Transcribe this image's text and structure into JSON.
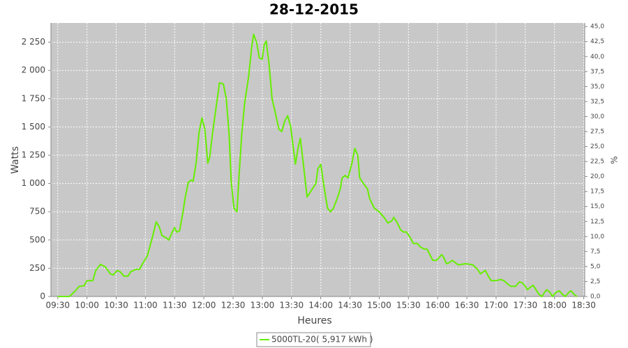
{
  "chart_data": {
    "type": "line",
    "title": "28-12-2015",
    "x_label": "Heures",
    "y_label": "Watts",
    "y2_label": "%",
    "xlim": [
      563,
      1111
    ],
    "ylim": [
      0,
      2420
    ],
    "y2lim": [
      0,
      45.6
    ],
    "xticks": [
      {
        "value": 570,
        "label": "09:30"
      },
      {
        "value": 600,
        "label": "10:00"
      },
      {
        "value": 630,
        "label": "10:30"
      },
      {
        "value": 660,
        "label": "11:00"
      },
      {
        "value": 690,
        "label": "11:30"
      },
      {
        "value": 720,
        "label": "12:00"
      },
      {
        "value": 750,
        "label": "12:30"
      },
      {
        "value": 780,
        "label": "13:00"
      },
      {
        "value": 810,
        "label": "13:30"
      },
      {
        "value": 840,
        "label": "14:00"
      },
      {
        "value": 870,
        "label": "14:30"
      },
      {
        "value": 900,
        "label": "15:00"
      },
      {
        "value": 930,
        "label": "15:30"
      },
      {
        "value": 960,
        "label": "16:00"
      },
      {
        "value": 990,
        "label": "16:30"
      },
      {
        "value": 1020,
        "label": "17:00"
      },
      {
        "value": 1050,
        "label": "17:30"
      },
      {
        "value": 1080,
        "label": "18:00"
      },
      {
        "value": 1110,
        "label": "18:30"
      }
    ],
    "yticks": [
      0,
      250,
      500,
      750,
      {
        "value": 1000,
        "label": "1 000"
      },
      {
        "value": 1250,
        "label": "1 250"
      },
      {
        "value": 1500,
        "label": "1 500"
      },
      {
        "value": 1750,
        "label": "1 750"
      },
      {
        "value": 2000,
        "label": "2 000"
      },
      {
        "value": 2250,
        "label": "2 250"
      }
    ],
    "y2ticks": [
      {
        "value": 0,
        "label": "0,0"
      },
      {
        "value": 2.5,
        "label": "2,5"
      },
      {
        "value": 5,
        "label": "5,0"
      },
      {
        "value": 7.5,
        "label": "7,5"
      },
      {
        "value": 10,
        "label": "10,0"
      },
      {
        "value": 12.5,
        "label": "12,5"
      },
      {
        "value": 15,
        "label": "15,0"
      },
      {
        "value": 17.5,
        "label": "17,5"
      },
      {
        "value": 20,
        "label": "20,0"
      },
      {
        "value": 22.5,
        "label": "22,5"
      },
      {
        "value": 25,
        "label": "25,0"
      },
      {
        "value": 27.5,
        "label": "27,5"
      },
      {
        "value": 30,
        "label": "30,0"
      },
      {
        "value": 32.5,
        "label": "32,5"
      },
      {
        "value": 35,
        "label": "35,0"
      },
      {
        "value": 37.5,
        "label": "37,5"
      },
      {
        "value": 40,
        "label": "40,0"
      },
      {
        "value": 42.5,
        "label": "42,5"
      },
      {
        "value": 45,
        "label": "45,0"
      }
    ],
    "grid": true,
    "x": [
      570,
      575,
      582,
      588,
      592,
      597,
      600,
      606,
      609,
      614,
      619,
      624,
      627,
      631,
      634,
      638,
      642,
      645,
      650,
      654,
      657,
      662,
      667,
      671,
      674,
      677,
      681,
      684,
      687,
      690,
      692,
      695,
      698,
      701,
      704,
      707,
      709,
      712,
      715,
      718,
      721,
      724,
      726,
      729,
      733,
      736,
      740,
      743,
      746,
      748,
      751,
      754,
      756,
      759,
      762,
      766,
      769,
      771,
      774,
      777,
      780,
      782,
      784,
      787,
      790,
      794,
      797,
      800,
      803,
      806,
      809,
      812,
      814,
      817,
      819,
      822,
      826,
      829,
      832,
      835,
      837,
      840,
      842,
      845,
      847,
      850,
      853,
      857,
      860,
      862,
      865,
      868,
      872,
      875,
      878,
      880,
      883,
      888,
      890,
      895,
      900,
      905,
      909,
      913,
      915,
      918,
      922,
      925,
      928,
      932,
      935,
      939,
      942,
      946,
      949,
      952,
      955,
      959,
      964,
      966,
      969,
      972,
      975,
      978,
      981,
      985,
      989,
      996,
      1001,
      1004,
      1007,
      1009,
      1012,
      1015,
      1019,
      1025,
      1028,
      1032,
      1035,
      1040,
      1044,
      1047,
      1050,
      1052,
      1055,
      1058,
      1061,
      1064,
      1067,
      1070,
      1072,
      1075,
      1078,
      1082,
      1085,
      1088,
      1091,
      1095,
      1097,
      1100,
      1103
    ],
    "series": [
      {
        "name": "5000TL-20( 5,917 kWh )",
        "color": "#66ee00",
        "values": [
          0,
          0,
          0,
          50,
          90,
          95,
          140,
          140,
          230,
          285,
          260,
          200,
          190,
          230,
          220,
          180,
          180,
          220,
          240,
          240,
          290,
          360,
          520,
          660,
          620,
          540,
          520,
          500,
          560,
          610,
          570,
          580,
          720,
          880,
          1010,
          1030,
          1020,
          1180,
          1450,
          1580,
          1480,
          1180,
          1230,
          1450,
          1700,
          1890,
          1880,
          1750,
          1420,
          1020,
          780,
          750,
          1050,
          1450,
          1720,
          1950,
          2200,
          2320,
          2250,
          2110,
          2100,
          2230,
          2260,
          2050,
          1750,
          1600,
          1480,
          1460,
          1550,
          1600,
          1510,
          1300,
          1170,
          1330,
          1400,
          1180,
          880,
          920,
          960,
          1000,
          1130,
          1170,
          1050,
          880,
          780,
          750,
          780,
          870,
          950,
          1050,
          1070,
          1050,
          1180,
          1310,
          1250,
          1050,
          1010,
          950,
          870,
          780,
          750,
          700,
          650,
          670,
          700,
          660,
          590,
          570,
          570,
          520,
          470,
          470,
          440,
          420,
          420,
          370,
          320,
          320,
          370,
          350,
          290,
          300,
          320,
          300,
          280,
          285,
          290,
          280,
          240,
          200,
          220,
          230,
          180,
          140,
          140,
          150,
          140,
          110,
          90,
          90,
          130,
          120,
          90,
          60,
          80,
          100,
          60,
          20,
          0,
          40,
          60,
          40,
          0,
          40,
          50,
          20,
          0,
          40,
          50,
          20,
          0
        ]
      }
    ]
  }
}
